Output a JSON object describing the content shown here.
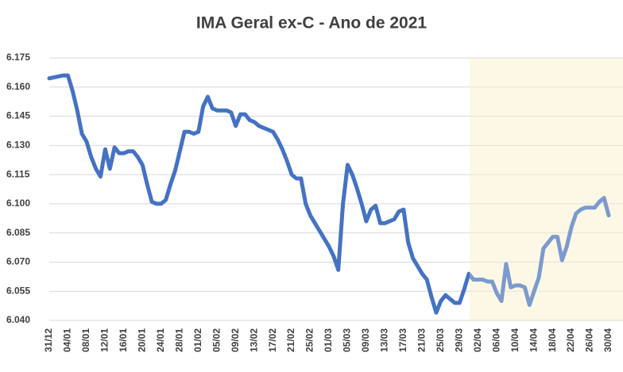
{
  "chart_data": {
    "type": "line",
    "title": "IMA Geral ex-C - Ano de 2021",
    "categories": [
      "31/12",
      null,
      null,
      null,
      "04/01",
      null,
      null,
      null,
      "08/01",
      null,
      null,
      null,
      "12/01",
      null,
      null,
      null,
      "16/01",
      null,
      null,
      null,
      "20/01",
      null,
      null,
      null,
      "24/01",
      null,
      null,
      null,
      "28/01",
      null,
      null,
      null,
      "01/02",
      null,
      null,
      null,
      "05/02",
      null,
      null,
      null,
      "09/02",
      null,
      null,
      null,
      "13/02",
      null,
      null,
      null,
      "17/02",
      null,
      null,
      null,
      "21/02",
      null,
      null,
      null,
      "25/02",
      null,
      null,
      null,
      "01/03",
      null,
      null,
      null,
      "05/03",
      null,
      null,
      null,
      "09/03",
      null,
      null,
      null,
      "13/03",
      null,
      null,
      null,
      "17/03",
      null,
      null,
      null,
      "21/03",
      null,
      null,
      null,
      "25/03",
      null,
      null,
      null,
      "29/03",
      null,
      null,
      null,
      "02/04",
      null,
      null,
      null,
      "06/04",
      null,
      null,
      null,
      "10/04",
      null,
      null,
      null,
      "14/04",
      null,
      null,
      null,
      "18/04",
      null,
      null,
      null,
      "22/04",
      null,
      null,
      null,
      "26/04",
      null,
      null,
      null,
      "30/04"
    ],
    "values": [
      6164.5,
      6165,
      6165.5,
      6166,
      6166,
      6158,
      6148,
      6136,
      6132,
      6124,
      6118,
      6114,
      6128,
      6118,
      6129,
      6126,
      6126,
      6127,
      6127,
      6124,
      6120,
      6110,
      6101,
      6100,
      6100,
      6102,
      6110,
      6117,
      6127,
      6137,
      6137,
      6136,
      6137,
      6150,
      6155,
      6149,
      6148,
      6148,
      6148,
      6147,
      6140,
      6146,
      6146,
      6143,
      6142,
      6140,
      6139,
      6138,
      6137,
      6133,
      6128,
      6122,
      6115,
      6113,
      6113,
      6100,
      6094,
      6090,
      6086,
      6082,
      6078,
      6073,
      6066,
      6100,
      6120,
      6115,
      6108,
      6100,
      6091,
      6097,
      6099,
      6090,
      6090,
      6091,
      6092,
      6096,
      6097,
      6080,
      6072,
      6068,
      6064,
      6061,
      6052,
      6044,
      6050,
      6053,
      6051,
      6049,
      6049,
      6056,
      6064,
      6061,
      6061,
      6061,
      6060,
      6060,
      6054,
      6050,
      6069,
      6057,
      6058,
      6058,
      6057,
      6048,
      6055,
      6062,
      6077,
      6080,
      6083,
      6083,
      6071,
      6078,
      6088,
      6095,
      6097,
      6098,
      6098,
      6098,
      6101,
      6103,
      6094
    ],
    "color": "#4472c4",
    "ylim": [
      6040,
      6175
    ],
    "yticks": [
      {
        "value": 6040,
        "label": "6.040"
      },
      {
        "value": 6055,
        "label": "6.055"
      },
      {
        "value": 6070,
        "label": "6.070"
      },
      {
        "value": 6085,
        "label": "6.085"
      },
      {
        "value": 6100,
        "label": "6.100"
      },
      {
        "value": 6115,
        "label": "6.115"
      },
      {
        "value": 6130,
        "label": "6.130"
      },
      {
        "value": 6145,
        "label": "6.145"
      },
      {
        "value": 6160,
        "label": "6.160"
      },
      {
        "value": 6175,
        "label": "6.175"
      }
    ],
    "grid": true
  }
}
